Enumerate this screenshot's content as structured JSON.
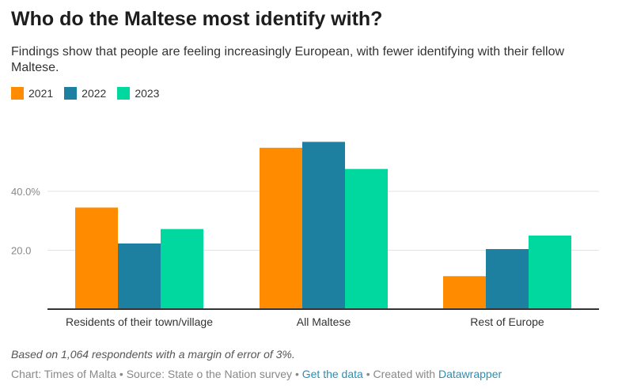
{
  "header": {
    "title": "Who do the Maltese most identify with?",
    "subtitle": "Findings show that people are feeling increasingly European, with fewer identifying with their fellow Maltese."
  },
  "chart_data": {
    "type": "bar",
    "categories": [
      "Residents of their town/village",
      "All Maltese",
      "Rest of Europe"
    ],
    "series": [
      {
        "name": "2021",
        "color": "#ff8c00",
        "values": [
          34.5,
          54.8,
          11.2
        ]
      },
      {
        "name": "2022",
        "color": "#1e80a0",
        "values": [
          22.3,
          56.8,
          20.4
        ]
      },
      {
        "name": "2023",
        "color": "#00d8a0",
        "values": [
          27.2,
          47.6,
          25.0
        ]
      }
    ],
    "yticks": [
      20,
      40
    ],
    "ytick_labels": [
      "20.0",
      "40.0%"
    ],
    "ylim": [
      0,
      60
    ],
    "grid": true,
    "legend_position": "top-left"
  },
  "footer": {
    "note": "Based on 1,064 respondents with a margin of error of 3%.",
    "credit_prefix": "Chart: Times of Malta • Source: State o the Nation survey • ",
    "get_data_link": "Get the data",
    "created_with": " • Created with ",
    "datawrapper_link": "Datawrapper"
  }
}
